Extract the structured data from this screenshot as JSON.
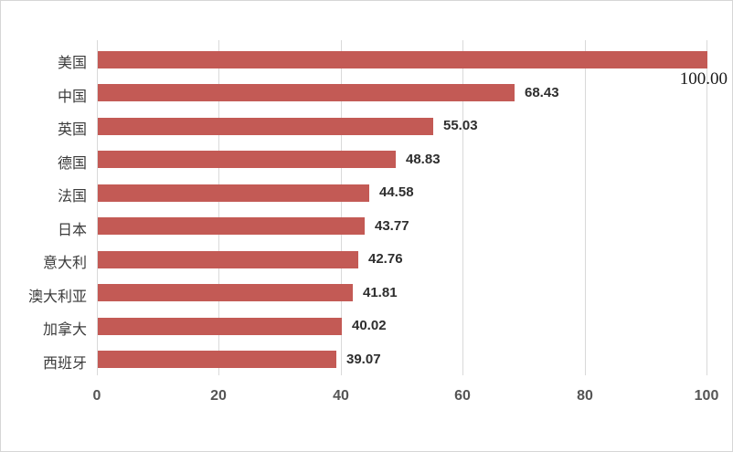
{
  "chart_data": {
    "type": "bar",
    "orientation": "horizontal",
    "title": "",
    "categories": [
      "美国",
      "中国",
      "英国",
      "德国",
      "法国",
      "日本",
      "意大利",
      "澳大利亚",
      "加拿大",
      "西班牙"
    ],
    "values": [
      100.0,
      68.43,
      55.03,
      48.83,
      44.58,
      43.77,
      42.76,
      41.81,
      40.02,
      39.07
    ],
    "value_labels": [
      "100.00",
      "68.43",
      "55.03",
      "48.83",
      "44.58",
      "43.77",
      "42.76",
      "41.81",
      "40.02",
      "39.07"
    ],
    "x_ticks": [
      "0",
      "20",
      "40",
      "60",
      "80",
      "100"
    ],
    "x_tick_values": [
      0,
      20,
      40,
      60,
      80,
      100
    ],
    "xlim": [
      0,
      100
    ],
    "xlabel": "",
    "ylabel": "",
    "grid": true,
    "legend": "none",
    "first_value_label_position": "below-bar-end",
    "colors": {
      "bar": "#c35a55",
      "gridline": "#d9d9d9",
      "tick_text": "#555555",
      "value_text": "#2e2e2e",
      "category_text": "#3b3b3b",
      "first_value_text": "#1a1a1a",
      "frame_border": "#d6d6d6",
      "background": "#ffffff"
    }
  }
}
